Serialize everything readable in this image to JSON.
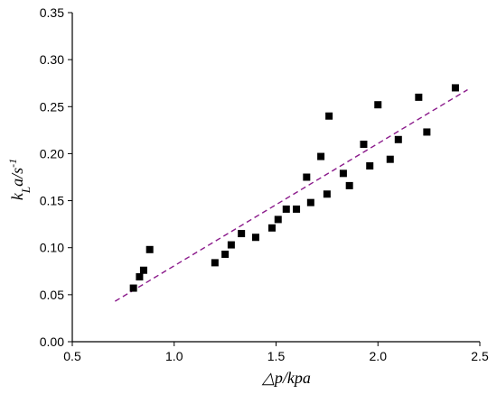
{
  "chart_data": {
    "type": "scatter",
    "xlabel": "△p/kpa",
    "ylabel": "kLa/s-1",
    "ylabel_parts": {
      "main": "k",
      "sub": "L",
      "rest": "a/s",
      "sup": "-1"
    },
    "xlim": [
      0.5,
      2.5
    ],
    "ylim": [
      0.0,
      0.35
    ],
    "x_ticks": [
      0.5,
      1.0,
      1.5,
      2.0,
      2.5
    ],
    "x_tick_labels": [
      "0.5",
      "1.0",
      "1.5",
      "2.0",
      "2.5"
    ],
    "y_ticks": [
      0.0,
      0.05,
      0.1,
      0.15,
      0.2,
      0.25,
      0.3,
      0.35
    ],
    "y_tick_labels": [
      "0.00",
      "0.05",
      "0.10",
      "0.15",
      "0.20",
      "0.25",
      "0.30",
      "0.35"
    ],
    "grid": false,
    "legend": "none",
    "series": [
      {
        "marker": "square",
        "color": "#000000",
        "x": [
          0.8,
          0.83,
          0.85,
          0.88,
          1.2,
          1.25,
          1.28,
          1.33,
          1.4,
          1.48,
          1.51,
          1.55,
          1.6,
          1.65,
          1.67,
          1.72,
          1.75,
          1.76,
          1.83,
          1.86,
          1.93,
          1.96,
          2.0,
          2.06,
          2.1,
          2.2,
          2.24,
          2.38
        ],
        "y": [
          0.057,
          0.069,
          0.076,
          0.098,
          0.084,
          0.093,
          0.103,
          0.115,
          0.111,
          0.121,
          0.13,
          0.141,
          0.141,
          0.175,
          0.148,
          0.197,
          0.157,
          0.24,
          0.179,
          0.166,
          0.21,
          0.187,
          0.252,
          0.194,
          0.215,
          0.26,
          0.223,
          0.27
        ]
      }
    ],
    "trendline": {
      "style": "dashed",
      "color": "#8B1A8B",
      "x": [
        0.71,
        2.44
      ],
      "y": [
        0.043,
        0.268
      ]
    }
  }
}
